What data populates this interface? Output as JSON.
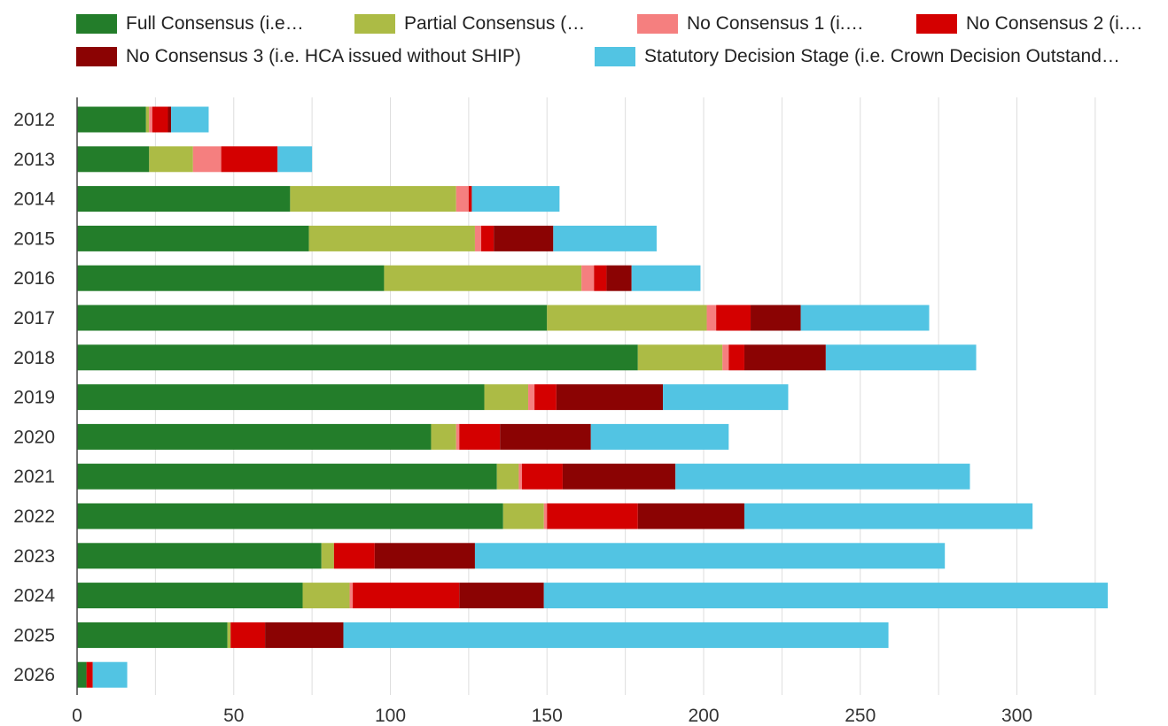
{
  "chart_data": {
    "type": "bar",
    "orientation": "horizontal",
    "stacked": true,
    "title": "",
    "xlabel": "",
    "ylabel": "",
    "xlim": [
      0,
      330
    ],
    "x_ticks": [
      0,
      50,
      100,
      150,
      200,
      250,
      300
    ],
    "grid": true,
    "legend_position": "top",
    "categories": [
      "2012",
      "2013",
      "2014",
      "2015",
      "2016",
      "2017",
      "2018",
      "2019",
      "2020",
      "2021",
      "2022",
      "2023",
      "2024",
      "2025",
      "2026"
    ],
    "series": [
      {
        "name": "Full Consensus (i.e…",
        "color": "#237d2a",
        "values": [
          22,
          23,
          68,
          74,
          98,
          150,
          179,
          130,
          113,
          134,
          136,
          78,
          72,
          48,
          3
        ]
      },
      {
        "name": "Partial Consensus (…",
        "color": "#acbb45",
        "values": [
          1,
          14,
          53,
          53,
          63,
          51,
          27,
          14,
          8,
          7,
          13,
          4,
          15,
          1,
          0
        ]
      },
      {
        "name": "No Consensus 1 (i.…",
        "color": "#f57f7f",
        "values": [
          1,
          9,
          4,
          2,
          4,
          3,
          2,
          2,
          1,
          1,
          1,
          0,
          1,
          0,
          0
        ]
      },
      {
        "name": "No Consensus 2 (i.…",
        "color": "#d40000",
        "values": [
          5,
          18,
          1,
          4,
          4,
          11,
          5,
          7,
          13,
          13,
          29,
          13,
          34,
          11,
          2
        ]
      },
      {
        "name": "No Consensus 3 (i.e. HCA issued without SHIP)",
        "color": "#8b0303",
        "values": [
          1,
          0,
          0,
          19,
          8,
          16,
          26,
          34,
          29,
          36,
          34,
          32,
          27,
          25,
          0
        ]
      },
      {
        "name": "Statutory Decision Stage (i.e. Crown Decision Outstand…",
        "color": "#52c4e3",
        "values": [
          12,
          11,
          28,
          33,
          22,
          41,
          48,
          40,
          44,
          94,
          92,
          150,
          180,
          174,
          11
        ]
      }
    ]
  }
}
